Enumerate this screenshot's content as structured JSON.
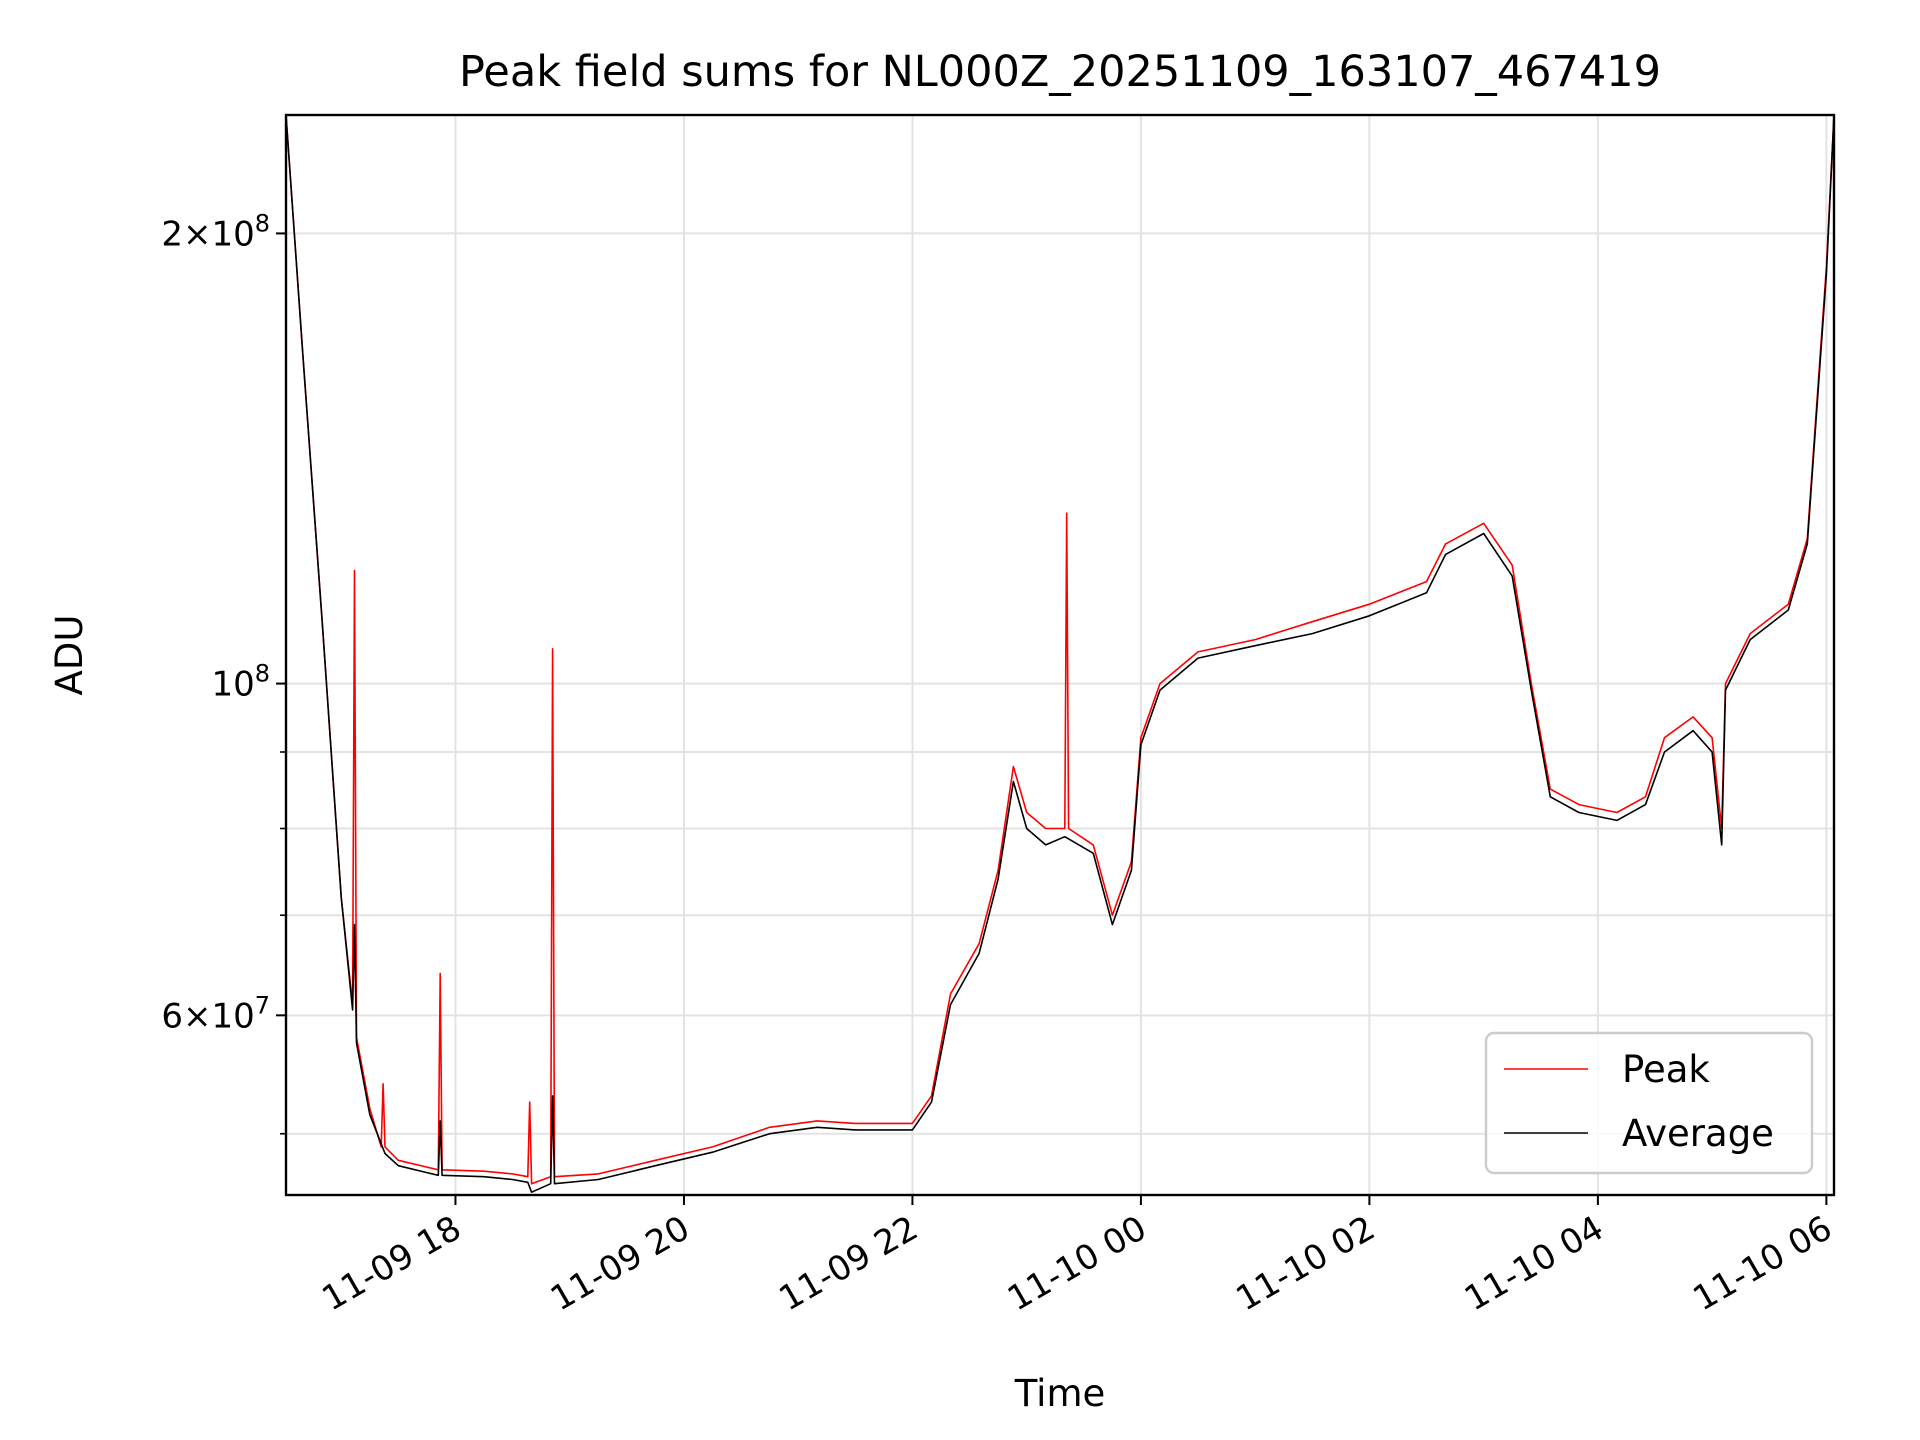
{
  "chart_data": {
    "type": "line",
    "title": "Peak field sums for NL000Z_20251109_163107_467419",
    "xlabel": "Time",
    "ylabel": "ADU",
    "x_scale": "time",
    "y_scale": "log",
    "xlim": [
      "2025-11-09 16:31",
      "2025-11-10 06:04"
    ],
    "ylim": [
      45500000,
      240000000
    ],
    "grid": true,
    "legend_position": "lower right",
    "x_ticks": [
      {
        "value": "2025-11-09 18:00",
        "label": "11-09 18"
      },
      {
        "value": "2025-11-09 20:00",
        "label": "11-09 20"
      },
      {
        "value": "2025-11-09 22:00",
        "label": "11-09 22"
      },
      {
        "value": "2025-11-10 00:00",
        "label": "11-10 00"
      },
      {
        "value": "2025-11-10 02:00",
        "label": "11-10 02"
      },
      {
        "value": "2025-11-10 04:00",
        "label": "11-10 04"
      },
      {
        "value": "2025-11-10 06:00",
        "label": "11-10 06"
      }
    ],
    "y_major_ticks": [
      {
        "value": 200000000,
        "mantissa": "2",
        "exponent": "8"
      },
      {
        "value": 100000000,
        "mantissa": "",
        "exponent": "8"
      },
      {
        "value": 60000000,
        "mantissa": "6",
        "exponent": "7"
      }
    ],
    "y_minor_ticks": [
      50000000,
      70000000,
      80000000,
      90000000
    ],
    "series": [
      {
        "name": "Peak",
        "color": "#ff0000",
        "points": [
          [
            "2025-11-09 16:31",
            240000000
          ],
          [
            "2025-11-09 16:40",
            165000000
          ],
          [
            "2025-11-09 16:50",
            110000000
          ],
          [
            "2025-11-09 17:00",
            72000000
          ],
          [
            "2025-11-09 17:06",
            61000000
          ],
          [
            "2025-11-09 17:07",
            119000000
          ],
          [
            "2025-11-09 17:08",
            58000000
          ],
          [
            "2025-11-09 17:15",
            52000000
          ],
          [
            "2025-11-09 17:21",
            49000000
          ],
          [
            "2025-11-09 17:22",
            54000000
          ],
          [
            "2025-11-09 17:23",
            49000000
          ],
          [
            "2025-11-09 17:30",
            48000000
          ],
          [
            "2025-11-09 17:45",
            47500000
          ],
          [
            "2025-11-09 17:51",
            47300000
          ],
          [
            "2025-11-09 17:52",
            64000000
          ],
          [
            "2025-11-09 17:53",
            47300000
          ],
          [
            "2025-11-09 18:15",
            47200000
          ],
          [
            "2025-11-09 18:30",
            47000000
          ],
          [
            "2025-11-09 18:38",
            46800000
          ],
          [
            "2025-11-09 18:39",
            52500000
          ],
          [
            "2025-11-09 18:40",
            46300000
          ],
          [
            "2025-11-09 18:50",
            46800000
          ],
          [
            "2025-11-09 18:51",
            105500000
          ],
          [
            "2025-11-09 18:52",
            46800000
          ],
          [
            "2025-11-09 19:15",
            47000000
          ],
          [
            "2025-11-09 19:45",
            48000000
          ],
          [
            "2025-11-09 20:15",
            49000000
          ],
          [
            "2025-11-09 20:45",
            50500000
          ],
          [
            "2025-11-09 21:10",
            51000000
          ],
          [
            "2025-11-09 21:30",
            50800000
          ],
          [
            "2025-11-09 22:00",
            50800000
          ],
          [
            "2025-11-09 22:10",
            53000000
          ],
          [
            "2025-11-09 22:20",
            62000000
          ],
          [
            "2025-11-09 22:35",
            67000000
          ],
          [
            "2025-11-09 22:45",
            75000000
          ],
          [
            "2025-11-09 22:53",
            88000000
          ],
          [
            "2025-11-09 23:00",
            82000000
          ],
          [
            "2025-11-09 23:10",
            80000000
          ],
          [
            "2025-11-09 23:20",
            80000000
          ],
          [
            "2025-11-09 23:21",
            130000000
          ],
          [
            "2025-11-09 23:22",
            80000000
          ],
          [
            "2025-11-09 23:35",
            78000000
          ],
          [
            "2025-11-09 23:45",
            70000000
          ],
          [
            "2025-11-09 23:55",
            76000000
          ],
          [
            "2025-11-10 00:00",
            92000000
          ],
          [
            "2025-11-10 00:10",
            100000000
          ],
          [
            "2025-11-10 00:30",
            105000000
          ],
          [
            "2025-11-10 01:00",
            107000000
          ],
          [
            "2025-11-10 01:30",
            110000000
          ],
          [
            "2025-11-10 02:00",
            113000000
          ],
          [
            "2025-11-10 02:30",
            117000000
          ],
          [
            "2025-11-10 02:40",
            124000000
          ],
          [
            "2025-11-10 03:00",
            128000000
          ],
          [
            "2025-11-10 03:15",
            120000000
          ],
          [
            "2025-11-10 03:25",
            100000000
          ],
          [
            "2025-11-10 03:35",
            85000000
          ],
          [
            "2025-11-10 03:50",
            83000000
          ],
          [
            "2025-11-10 04:10",
            82000000
          ],
          [
            "2025-11-10 04:25",
            84000000
          ],
          [
            "2025-11-10 04:35",
            92000000
          ],
          [
            "2025-11-10 04:50",
            95000000
          ],
          [
            "2025-11-10 05:00",
            92000000
          ],
          [
            "2025-11-10 05:05",
            80000000
          ],
          [
            "2025-11-10 05:07",
            100000000
          ],
          [
            "2025-11-10 05:20",
            108000000
          ],
          [
            "2025-11-10 05:40",
            113000000
          ],
          [
            "2025-11-10 05:50",
            125000000
          ],
          [
            "2025-11-10 06:00",
            190000000
          ],
          [
            "2025-11-10 06:04",
            240000000
          ]
        ]
      },
      {
        "name": "Average",
        "color": "#000000",
        "points": [
          [
            "2025-11-09 16:31",
            240000000
          ],
          [
            "2025-11-09 16:40",
            165000000
          ],
          [
            "2025-11-09 16:50",
            110000000
          ],
          [
            "2025-11-09 17:00",
            72000000
          ],
          [
            "2025-11-09 17:06",
            60500000
          ],
          [
            "2025-11-09 17:07",
            69000000
          ],
          [
            "2025-11-09 17:08",
            57500000
          ],
          [
            "2025-11-09 17:15",
            51500000
          ],
          [
            "2025-11-09 17:23",
            48500000
          ],
          [
            "2025-11-09 17:30",
            47600000
          ],
          [
            "2025-11-09 17:45",
            47100000
          ],
          [
            "2025-11-09 17:51",
            46900000
          ],
          [
            "2025-11-09 17:52",
            51000000
          ],
          [
            "2025-11-09 17:53",
            46900000
          ],
          [
            "2025-11-09 18:15",
            46800000
          ],
          [
            "2025-11-09 18:30",
            46600000
          ],
          [
            "2025-11-09 18:38",
            46400000
          ],
          [
            "2025-11-09 18:40",
            45700000
          ],
          [
            "2025-11-09 18:50",
            46300000
          ],
          [
            "2025-11-09 18:51",
            53000000
          ],
          [
            "2025-11-09 18:52",
            46300000
          ],
          [
            "2025-11-09 19:15",
            46600000
          ],
          [
            "2025-11-09 19:45",
            47600000
          ],
          [
            "2025-11-09 20:15",
            48600000
          ],
          [
            "2025-11-09 20:45",
            50000000
          ],
          [
            "2025-11-09 21:10",
            50500000
          ],
          [
            "2025-11-09 21:30",
            50300000
          ],
          [
            "2025-11-09 22:00",
            50300000
          ],
          [
            "2025-11-09 22:10",
            52500000
          ],
          [
            "2025-11-09 22:20",
            61000000
          ],
          [
            "2025-11-09 22:35",
            66000000
          ],
          [
            "2025-11-09 22:45",
            74000000
          ],
          [
            "2025-11-09 22:53",
            86000000
          ],
          [
            "2025-11-09 23:00",
            80000000
          ],
          [
            "2025-11-09 23:10",
            78000000
          ],
          [
            "2025-11-09 23:20",
            79000000
          ],
          [
            "2025-11-09 23:35",
            77000000
          ],
          [
            "2025-11-09 23:45",
            69000000
          ],
          [
            "2025-11-09 23:55",
            75000000
          ],
          [
            "2025-11-10 00:00",
            91000000
          ],
          [
            "2025-11-10 00:10",
            99000000
          ],
          [
            "2025-11-10 00:30",
            104000000
          ],
          [
            "2025-11-10 01:00",
            106000000
          ],
          [
            "2025-11-10 01:30",
            108000000
          ],
          [
            "2025-11-10 02:00",
            111000000
          ],
          [
            "2025-11-10 02:30",
            115000000
          ],
          [
            "2025-11-10 02:40",
            122000000
          ],
          [
            "2025-11-10 03:00",
            126000000
          ],
          [
            "2025-11-10 03:15",
            118000000
          ],
          [
            "2025-11-10 03:25",
            99000000
          ],
          [
            "2025-11-10 03:35",
            84000000
          ],
          [
            "2025-11-10 03:50",
            82000000
          ],
          [
            "2025-11-10 04:10",
            81000000
          ],
          [
            "2025-11-10 04:25",
            83000000
          ],
          [
            "2025-11-10 04:35",
            90000000
          ],
          [
            "2025-11-10 04:50",
            93000000
          ],
          [
            "2025-11-10 05:00",
            90000000
          ],
          [
            "2025-11-10 05:05",
            78000000
          ],
          [
            "2025-11-10 05:07",
            99000000
          ],
          [
            "2025-11-10 05:20",
            107000000
          ],
          [
            "2025-11-10 05:40",
            112000000
          ],
          [
            "2025-11-10 05:50",
            124000000
          ],
          [
            "2025-11-10 06:00",
            188000000
          ],
          [
            "2025-11-10 06:04",
            240000000
          ]
        ]
      }
    ]
  }
}
